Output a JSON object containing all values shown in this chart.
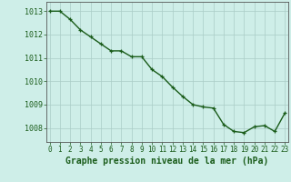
{
  "x": [
    0,
    1,
    2,
    3,
    4,
    5,
    6,
    7,
    8,
    9,
    10,
    11,
    12,
    13,
    14,
    15,
    16,
    17,
    18,
    19,
    20,
    21,
    22,
    23
  ],
  "y": [
    1013.0,
    1013.0,
    1012.65,
    1012.2,
    1011.9,
    1011.6,
    1011.3,
    1011.3,
    1011.05,
    1011.05,
    1010.5,
    1010.2,
    1009.75,
    1009.35,
    1009.0,
    1008.9,
    1008.85,
    1008.15,
    1007.85,
    1007.8,
    1008.05,
    1008.1,
    1007.85,
    1008.65
  ],
  "line_color": "#1a5c1a",
  "marker": "+",
  "marker_size": 3.5,
  "marker_linewidth": 0.9,
  "bg_color": "#ceeee8",
  "grid_color": "#aaccc6",
  "ylabel_values": [
    1008,
    1009,
    1010,
    1011,
    1012,
    1013
  ],
  "xlabel_values": [
    0,
    1,
    2,
    3,
    4,
    5,
    6,
    7,
    8,
    9,
    10,
    11,
    12,
    13,
    14,
    15,
    16,
    17,
    18,
    19,
    20,
    21,
    22,
    23
  ],
  "xlabel": "Graphe pression niveau de la mer (hPa)",
  "xlim": [
    -0.3,
    23.3
  ],
  "ylim": [
    1007.4,
    1013.4
  ],
  "tick_color": "#1a5c1a",
  "axis_color": "#555555",
  "ytick_fontsize": 6.0,
  "xtick_fontsize": 5.5,
  "xlabel_fontsize": 7.0,
  "linewidth": 1.0
}
